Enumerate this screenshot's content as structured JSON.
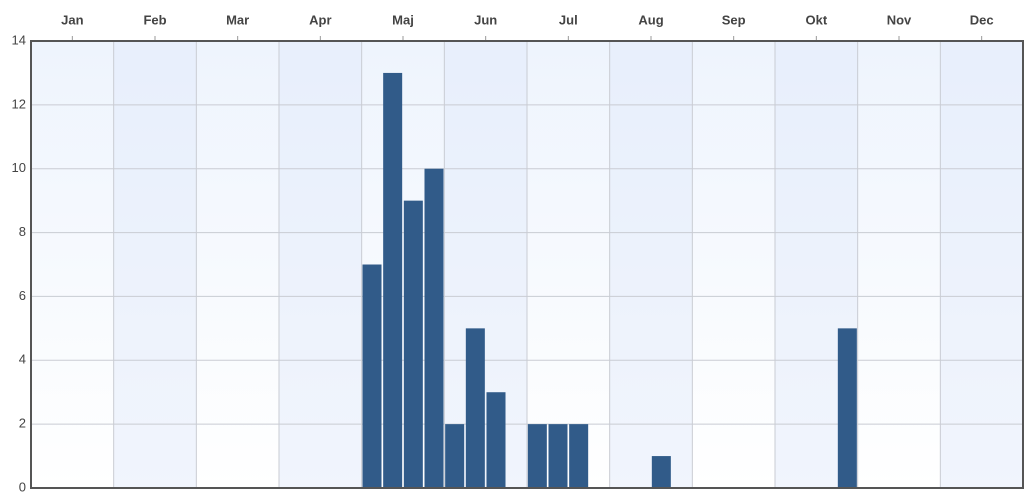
{
  "chart_data": {
    "type": "bar",
    "x": [
      4.125,
      4.375,
      4.625,
      4.875,
      5.125,
      5.375,
      5.625,
      6.125,
      6.375,
      6.625,
      7.625,
      9.875
    ],
    "values": [
      7,
      13,
      9,
      10,
      2,
      5,
      3,
      2,
      2,
      2,
      1,
      5
    ],
    "color": "#315b89",
    "xlim": [
      0,
      12
    ],
    "xticks": [
      {
        "value": 0.5,
        "label": "Jan"
      },
      {
        "value": 1.5,
        "label": "Feb"
      },
      {
        "value": 2.5,
        "label": "Mar"
      },
      {
        "value": 3.5,
        "label": "Apr"
      },
      {
        "value": 4.5,
        "label": "Maj"
      },
      {
        "value": 5.5,
        "label": "Jun"
      },
      {
        "value": 6.5,
        "label": "Jul"
      },
      {
        "value": 7.5,
        "label": "Aug"
      },
      {
        "value": 8.5,
        "label": "Sep"
      },
      {
        "value": 9.5,
        "label": "Okt"
      },
      {
        "value": 10.5,
        "label": "Nov"
      },
      {
        "value": 11.5,
        "label": "Dec"
      }
    ],
    "ylim": [
      0,
      14
    ],
    "yticks": [
      0,
      2,
      4,
      6,
      8,
      10,
      12,
      14
    ],
    "grid": true
  }
}
